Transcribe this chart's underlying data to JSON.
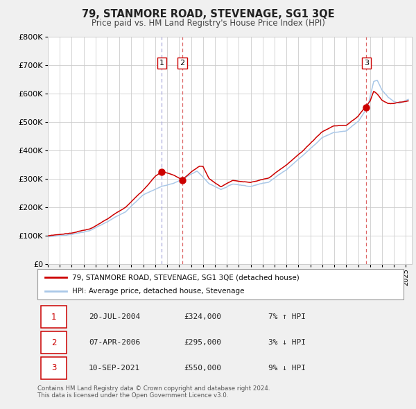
{
  "title": "79, STANMORE ROAD, STEVENAGE, SG1 3QE",
  "subtitle": "Price paid vs. HM Land Registry's House Price Index (HPI)",
  "ylim": [
    0,
    800000
  ],
  "yticks": [
    0,
    100000,
    200000,
    300000,
    400000,
    500000,
    600000,
    700000,
    800000
  ],
  "ytick_labels": [
    "£0",
    "£100K",
    "£200K",
    "£300K",
    "£400K",
    "£500K",
    "£600K",
    "£700K",
    "£800K"
  ],
  "hpi_color": "#aac8e8",
  "sale_color": "#cc0000",
  "background_color": "#f0f0f0",
  "plot_bg_color": "#ffffff",
  "grid_color": "#cccccc",
  "vline1_color": "#aaaadd",
  "vline23_color": "#dd6666",
  "sale_dates_decimal": [
    2004.549,
    2006.264,
    2021.693
  ],
  "sale_prices": [
    324000,
    295000,
    550000
  ],
  "sale_labels": [
    "1",
    "2",
    "3"
  ],
  "transactions": [
    {
      "num": "1",
      "date": "20-JUL-2004",
      "price": "£324,000",
      "pct": "7% ↑ HPI"
    },
    {
      "num": "2",
      "date": "07-APR-2006",
      "price": "£295,000",
      "pct": "3% ↓ HPI"
    },
    {
      "num": "3",
      "date": "10-SEP-2021",
      "price": "£550,000",
      "pct": "9% ↓ HPI"
    }
  ],
  "legend_label_sale": "79, STANMORE ROAD, STEVENAGE, SG1 3QE (detached house)",
  "legend_label_hpi": "HPI: Average price, detached house, Stevenage",
  "footer": "Contains HM Land Registry data © Crown copyright and database right 2024.\nThis data is licensed under the Open Government Licence v3.0.",
  "xlim_start": 1995.0,
  "xlim_end": 2025.5,
  "xticks": [
    1995,
    1996,
    1997,
    1998,
    1999,
    2000,
    2001,
    2002,
    2003,
    2004,
    2005,
    2006,
    2007,
    2008,
    2009,
    2010,
    2011,
    2012,
    2013,
    2014,
    2015,
    2016,
    2017,
    2018,
    2019,
    2020,
    2021,
    2022,
    2023,
    2024,
    2025
  ]
}
